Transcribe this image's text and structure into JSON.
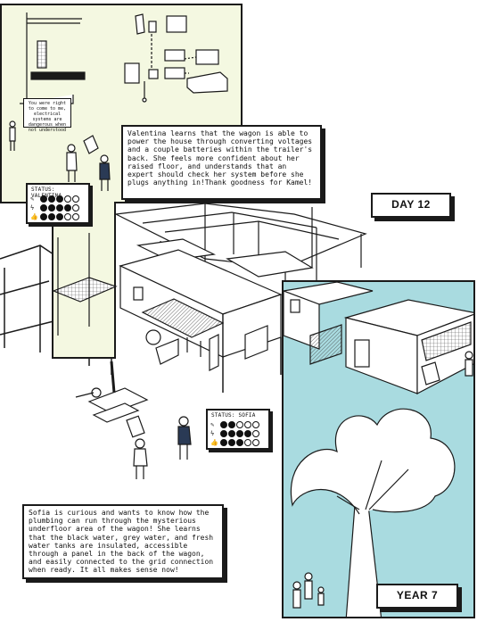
{
  "panels": {
    "top_left": {
      "speech_bubble": "You were right to come to me, electrical systems are dangerous when not understood",
      "status": {
        "label": "STATUS: VALENTINA",
        "levels": [
          3,
          4,
          3
        ]
      }
    },
    "narration_valentina": "Valentina learns that the wagon is able to power the house through converting voltages and a couple batteries within the trailer's back. She feels more confident about her raised floor, and understands that an expert should check her system before she plugs anything in!Thank goodness for Kamel!",
    "day_label": "DAY 12",
    "status_sofia": {
      "label": "STATUS: SOFIA",
      "levels": [
        2,
        4,
        3
      ]
    },
    "narration_sofia": "Sofia is curious and wants to know how the plumbing can run through the mysterious underfloor area of the wagon! She learns that the black water, grey water, and fresh water tanks are insulated, accessible through a panel in the back of the wagon, and easily connected to the grid connection when ready. It all makes sense now!",
    "year_label": "YEAR 7"
  },
  "colors": {
    "cream_panel": "#f4f8e1",
    "teal_panel": "#a9dbe0",
    "ink": "#1a1a1a"
  },
  "status_icons": [
    "pencil-icon",
    "lightning-icon",
    "thumbs-up-icon"
  ]
}
